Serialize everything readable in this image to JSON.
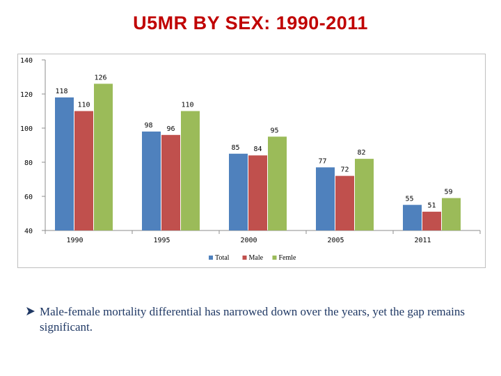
{
  "slide": {
    "title": "U5MR BY SEX: 1990-2011",
    "bullet_icon": "arrow-bullet-icon",
    "caption": "Male-female mortality differential has narrowed down over the years, yet the gap remains significant."
  },
  "chart_data": {
    "type": "bar",
    "categories": [
      "1990",
      "1995",
      "2000",
      "2005",
      "2011"
    ],
    "series": [
      {
        "name": "Total",
        "values": [
          118,
          98,
          85,
          77,
          55
        ],
        "color": "#4f81bd"
      },
      {
        "name": "Male",
        "values": [
          110,
          96,
          84,
          72,
          51
        ],
        "color": "#c0504d"
      },
      {
        "name": "Femle",
        "values": [
          126,
          110,
          95,
          82,
          59
        ],
        "color": "#9bbb59"
      }
    ],
    "ylim": [
      40,
      140
    ],
    "yticks": [
      40,
      60,
      80,
      100,
      120,
      140
    ],
    "grid": false,
    "legend": "bottom"
  }
}
